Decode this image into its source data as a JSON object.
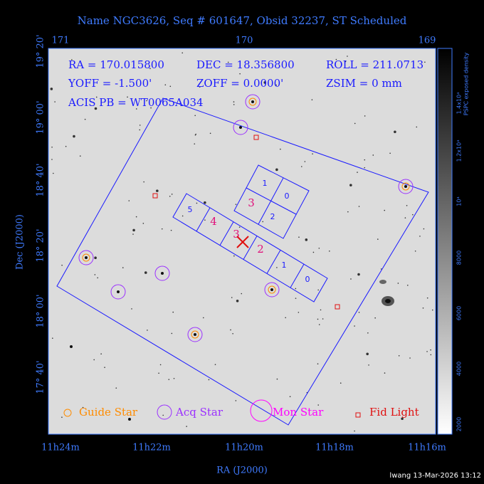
{
  "title": "Name NGC3626, Seq # 601647, Obsid 32237, ST Scheduled",
  "info": [
    "RA = 170.015800",
    "DEC = 18.356800",
    "ROLL = 211.0713",
    "YOFF = -1.500'",
    "ZOFF = 0.0000'",
    "ZSIM = 0 mm",
    "ACIS PB = WT0065A034"
  ],
  "chips": [
    "1",
    "0",
    "3",
    "2",
    "5",
    "4",
    "3",
    "2",
    "1",
    "0"
  ],
  "legend": [
    "Guide Star",
    "Acq Star",
    "Mon Star",
    "Fid Light"
  ],
  "top_ticks": [
    "171",
    "170",
    "169"
  ],
  "bottom_ticks": [
    "11h24m",
    "11h22m",
    "11h20m",
    "11h18m",
    "11h16m"
  ],
  "left_ticks": [
    "19° 20'",
    "19° 00'",
    "18° 40'",
    "18° 20'",
    "18° 00'",
    "17° 40'"
  ],
  "x_label": "RA (J2000)",
  "y_label": "Dec (J2000)",
  "colorbar": {
    "title": "PSPC exposed density",
    "ticks": [
      "1.4x10⁴",
      "1.2x10⁴",
      "10⁴",
      "8000",
      "6000",
      "4000",
      "2000"
    ]
  },
  "footer": "lwang 13-Mar-2026 13:12"
}
